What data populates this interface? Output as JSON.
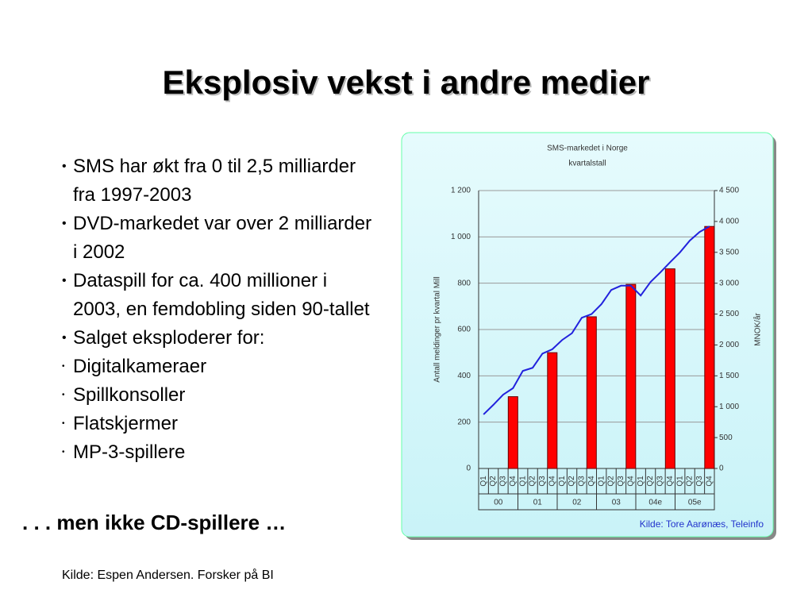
{
  "title": "Eksplosiv vekst i andre medier",
  "bullets": [
    "SMS har økt fra 0 til 2,5 milliarder fra 1997-2003",
    "DVD-markedet var over 2 milliarder i 2002",
    "Dataspill for ca. 400 millioner i 2003, en femdobling siden 90-tallet",
    "Salget eksploderer for:"
  ],
  "sub_bullets": [
    "Digitalkameraer",
    "Spillkonsoller",
    "Flatskjermer",
    "MP-3-spillere"
  ],
  "tagline": ". . . men ikke CD-spillere …",
  "source": "Kilde: Espen Andersen. Forsker på BI",
  "chart_data": {
    "type": "bar",
    "title": "SMS-markedet i Norge",
    "subtitle": "kvartalstall",
    "ylabel": "Antall meldinger pr kvartal Mill",
    "y2label": "MNOK/år",
    "annotation": "Kilde: Tore Aarønæs, Teleinfo",
    "categories": [
      "Q1",
      "Q2",
      "Q3",
      "Q4",
      "Q1",
      "Q2",
      "Q3",
      "Q4",
      "Q1",
      "Q2",
      "Q3",
      "Q4",
      "Q1",
      "Q2",
      "Q3",
      "Q4",
      "Q1",
      "Q2",
      "Q3",
      "Q4",
      "Q1",
      "Q2",
      "Q3",
      "Q4"
    ],
    "groups": [
      "00",
      "01",
      "02",
      "03",
      "04e",
      "05e"
    ],
    "series": [
      {
        "name": "Antall meldinger",
        "type": "bar",
        "color": "#ff0000",
        "values": [
          null,
          null,
          null,
          310,
          null,
          null,
          null,
          500,
          null,
          null,
          null,
          655,
          null,
          null,
          null,
          795,
          null,
          null,
          null,
          862,
          null,
          null,
          null,
          1045
        ]
      },
      {
        "name": "MNOK",
        "type": "line",
        "axis": "y2",
        "color": "#2222dd",
        "values": [
          875,
          1030,
          1195,
          1300,
          1580,
          1630,
          1860,
          1930,
          2080,
          2190,
          2440,
          2500,
          2660,
          2890,
          2960,
          2960,
          2800,
          3020,
          3175,
          3340,
          3500,
          3690,
          3830,
          3920
        ]
      }
    ],
    "ylim": [
      0,
      1200
    ],
    "yticks": [
      0,
      200,
      400,
      600,
      800,
      {
        "value": 1000,
        "label": "1 000"
      },
      {
        "value": 1200,
        "label": "1 200"
      }
    ],
    "y2lim": [
      0,
      4500
    ],
    "y2ticks": [
      0,
      500,
      {
        "value": 1000,
        "label": "1 000"
      },
      {
        "value": 1500,
        "label": "1 500"
      },
      {
        "value": 2000,
        "label": "2 000"
      },
      {
        "value": 2500,
        "label": "2 500"
      },
      {
        "value": 3000,
        "label": "3 000"
      },
      {
        "value": 3500,
        "label": "3 500"
      },
      {
        "value": 4000,
        "label": "4 000"
      },
      {
        "value": 4500,
        "label": "4 500"
      }
    ],
    "grid": true
  }
}
